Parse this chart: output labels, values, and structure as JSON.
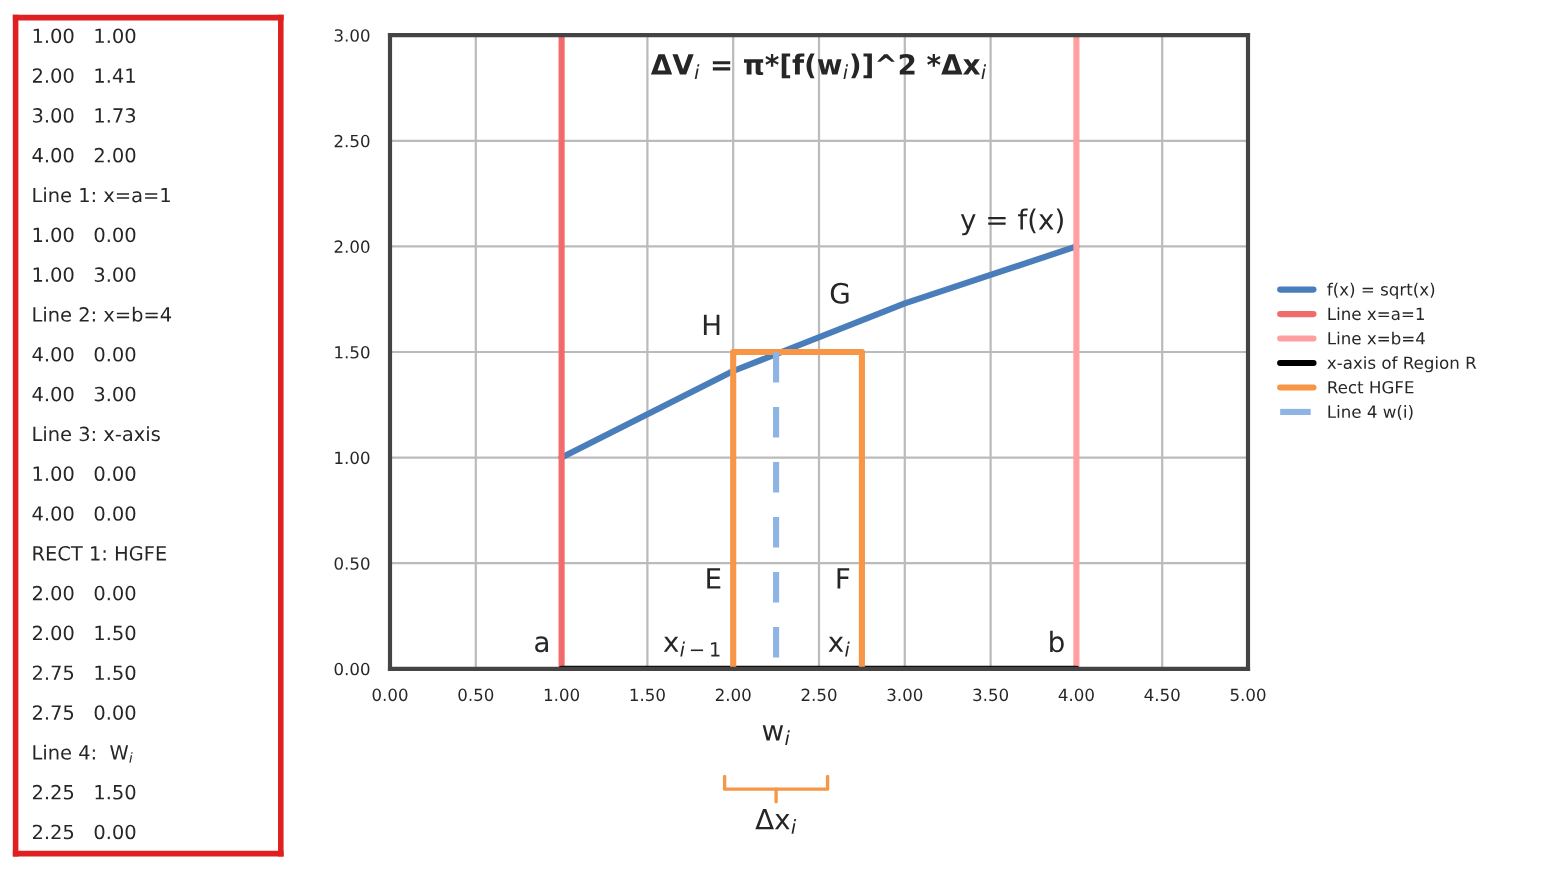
{
  "chart_data": [
    {
      "type": "other",
      "annotations": [
        "1.00   1.00",
        "2.00   1.41",
        "3.00   1.73",
        "4.00   2.00",
        "Line 1: x=a=1",
        "1.00   0.00",
        "1.00   3.00",
        "Line 2: x=b=4",
        "4.00   0.00",
        "4.00   3.00",
        "Line 3: x-axis",
        "1.00   0.00",
        "4.00   0.00",
        "RECT 1: HGFE",
        "2.00   0.00",
        "2.00   1.50",
        "2.75   1.50",
        "2.75   0.00",
        "Line 4:  W$_{i}$",
        "2.25   1.50",
        "2.25   0.00"
      ]
    },
    {
      "type": "line",
      "title": "ΔV$_{i}$ = π*[f(w$_{i}$)]^2 *Δx$_{i}$",
      "series": [
        {
          "name": "f(x) = sqrt(x)",
          "color": "#4a7ebb",
          "x": [
            1,
            2,
            3,
            4
          ],
          "values": [
            1.0,
            1.41,
            1.73,
            2.0
          ]
        },
        {
          "name": "Line x=a=1",
          "color": "#f26b6b",
          "x": [
            1,
            1
          ],
          "values": [
            0,
            3
          ]
        },
        {
          "name": "Line x=b=4",
          "color": "#ff9f9f",
          "x": [
            4,
            4
          ],
          "values": [
            0,
            3
          ]
        },
        {
          "name": "x-axis of Region R",
          "color": "#000000",
          "x": [
            1,
            4
          ],
          "values": [
            0,
            0
          ]
        },
        {
          "name": "Rect HGFE",
          "color": "#f79646",
          "x": [
            2,
            2,
            2.75,
            2.75
          ],
          "values": [
            0,
            1.5,
            1.5,
            0
          ]
        },
        {
          "name": "Line 4 w(i)",
          "color": "#8eb4e3",
          "x": [
            2.25,
            2.25
          ],
          "values": [
            1.5,
            0
          ],
          "line_style": "dashed"
        }
      ],
      "xlim": [
        0,
        5
      ],
      "xticks": [
        {
          "value": 0,
          "label": "0.00"
        },
        {
          "value": 0.5,
          "label": "0.50"
        },
        {
          "value": 1,
          "label": "1.00"
        },
        {
          "value": 1.5,
          "label": "1.50"
        },
        {
          "value": 2,
          "label": "2.00"
        },
        {
          "value": 2.5,
          "label": "2.50"
        },
        {
          "value": 3,
          "label": "3.00"
        },
        {
          "value": 3.5,
          "label": "3.50"
        },
        {
          "value": 4,
          "label": "4.00"
        },
        {
          "value": 4.5,
          "label": "4.50"
        },
        {
          "value": 5,
          "label": "5.00"
        }
      ],
      "ylim": [
        0,
        3
      ],
      "yticks": [
        {
          "value": 0,
          "label": "0.00"
        },
        {
          "value": 0.5,
          "label": "0.50"
        },
        {
          "value": 1,
          "label": "1.00"
        },
        {
          "value": 1.5,
          "label": "1.50"
        },
        {
          "value": 2,
          "label": "2.00"
        },
        {
          "value": 2.5,
          "label": "2.50"
        },
        {
          "value": 3,
          "label": "3.00"
        }
      ],
      "grid": true,
      "legend": "right",
      "line_style": "solid",
      "marker": "none",
      "annotations": [
        {
          "text": "y = f(x)",
          "x": 4,
          "y": 2
        },
        {
          "text": "H",
          "x": 2,
          "y": 1.5
        },
        {
          "text": "G",
          "x": 2.75,
          "y": 1.65
        },
        {
          "text": "E",
          "x": 2,
          "y": 0.3
        },
        {
          "text": "F",
          "x": 2.75,
          "y": 0.3
        },
        {
          "text": "x$_{i−1}$",
          "x": 2,
          "y": 0
        },
        {
          "text": "x$_{i}$",
          "x": 2.75,
          "y": 0
        },
        {
          "text": "a",
          "x": 1,
          "y": 0
        },
        {
          "text": "b",
          "x": 4,
          "y": 0
        },
        "w$_{i}$",
        "Δx$_{i}$"
      ]
    }
  ]
}
